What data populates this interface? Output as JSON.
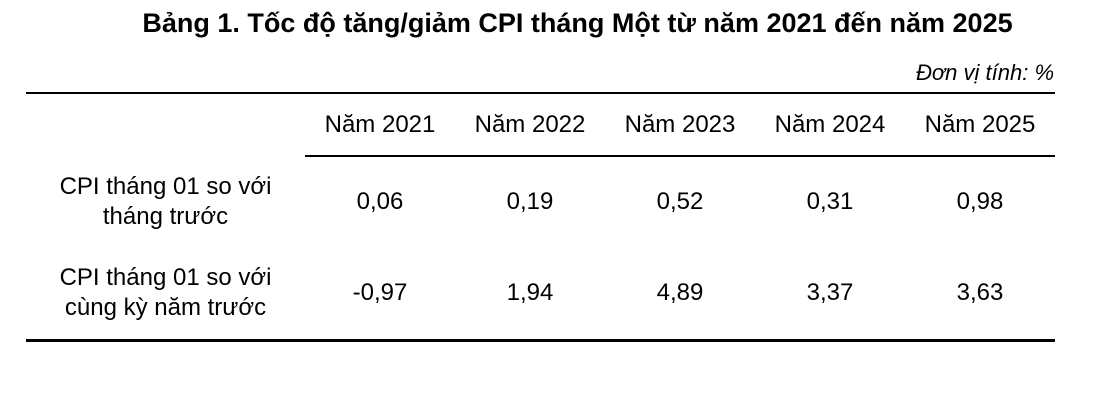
{
  "title": "Bảng 1. Tốc độ tăng/giảm CPI tháng Một từ năm 2021 đến năm 2025",
  "unit_note": "Đơn vị tính: %",
  "table": {
    "column_headers": [
      "Năm 2021",
      "Năm 2022",
      "Năm 2023",
      "Năm 2024",
      "Năm 2025"
    ],
    "rows": [
      {
        "label": "CPI tháng 01 so với tháng trước",
        "values": [
          "0,06",
          "0,19",
          "0,52",
          "0,31",
          "0,98"
        ]
      },
      {
        "label": "CPI tháng 01 so với cùng kỳ năm trước",
        "values": [
          "-0,97",
          "1,94",
          "4,89",
          "3,37",
          "3,63"
        ]
      }
    ]
  },
  "colors": {
    "text": "#000000",
    "background": "#ffffff",
    "rule": "#000000"
  },
  "chart_data": {
    "type": "table",
    "title": "Bảng 1. Tốc độ tăng/giảm CPI tháng Một từ năm 2021 đến năm 2025",
    "unit": "%",
    "categories": [
      "Năm 2021",
      "Năm 2022",
      "Năm 2023",
      "Năm 2024",
      "Năm 2025"
    ],
    "series": [
      {
        "name": "CPI tháng 01 so với tháng trước",
        "values": [
          0.06,
          0.19,
          0.52,
          0.31,
          0.98
        ]
      },
      {
        "name": "CPI tháng 01 so với cùng kỳ năm trước",
        "values": [
          -0.97,
          1.94,
          4.89,
          3.37,
          3.63
        ]
      }
    ]
  }
}
